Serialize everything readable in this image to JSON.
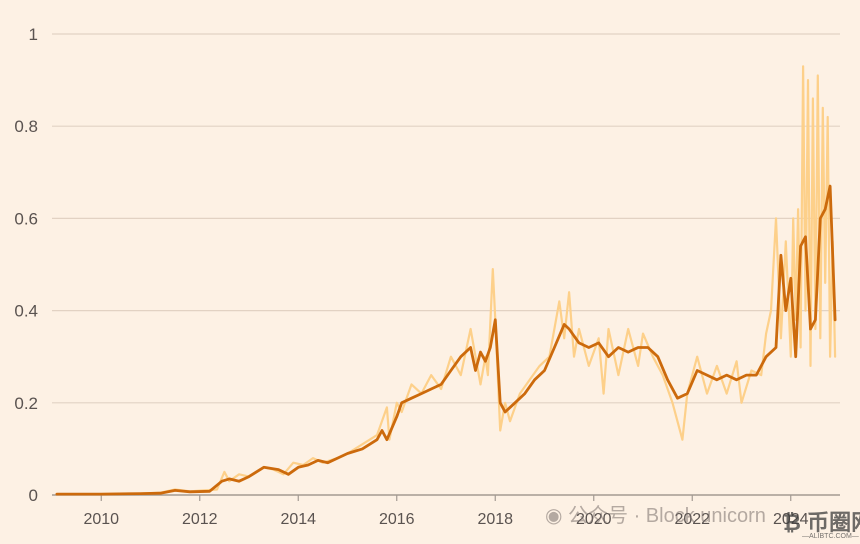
{
  "chart_data": {
    "type": "line",
    "title": "",
    "xlabel": "",
    "ylabel": "",
    "xlim": [
      2009.0,
      2025.0
    ],
    "ylim": [
      0,
      1
    ],
    "yticks": [
      {
        "value": 0,
        "label": "0"
      },
      {
        "value": 0.2,
        "label": "0.2"
      },
      {
        "value": 0.4,
        "label": "0.4"
      },
      {
        "value": 0.6,
        "label": "0.6"
      },
      {
        "value": 0.8,
        "label": "0.8"
      },
      {
        "value": 1,
        "label": "1"
      }
    ],
    "xticks": [
      {
        "value": 2010,
        "label": "2010"
      },
      {
        "value": 2012,
        "label": "2012"
      },
      {
        "value": 2014,
        "label": "2014"
      },
      {
        "value": 2016,
        "label": "2016"
      },
      {
        "value": 2018,
        "label": "2018"
      },
      {
        "value": 2020,
        "label": "2020"
      },
      {
        "value": 2022,
        "label": "2022"
      },
      {
        "value": 2024,
        "label": "2024"
      }
    ],
    "grid": true,
    "series": [
      {
        "color": "#fdd08a",
        "role": "daily",
        "x": [
          2009.1,
          2010.0,
          2010.8,
          2011.2,
          2011.5,
          2011.8,
          2012.1,
          2012.35,
          2012.5,
          2012.6,
          2012.8,
          2013.0,
          2013.3,
          2013.5,
          2013.7,
          2013.9,
          2014.1,
          2014.3,
          2014.5,
          2014.8,
          2015.0,
          2015.3,
          2015.6,
          2015.8,
          2015.85,
          2016.0,
          2016.1,
          2016.3,
          2016.5,
          2016.7,
          2016.9,
          2017.1,
          2017.3,
          2017.5,
          2017.7,
          2017.8,
          2017.85,
          2017.95,
          2018.0,
          2018.1,
          2018.2,
          2018.3,
          2018.5,
          2018.7,
          2018.9,
          2019.1,
          2019.3,
          2019.4,
          2019.5,
          2019.6,
          2019.7,
          2019.9,
          2020.1,
          2020.2,
          2020.3,
          2020.5,
          2020.7,
          2020.9,
          2021.0,
          2021.2,
          2021.4,
          2021.6,
          2021.8,
          2021.9,
          2022.1,
          2022.3,
          2022.5,
          2022.7,
          2022.9,
          2023.0,
          2023.2,
          2023.4,
          2023.5,
          2023.6,
          2023.7,
          2023.8,
          2023.9,
          2024.0,
          2024.05,
          2024.1,
          2024.15,
          2024.2,
          2024.25,
          2024.3,
          2024.35,
          2024.4,
          2024.45,
          2024.5,
          2024.55,
          2024.6,
          2024.65,
          2024.7,
          2024.75,
          2024.8,
          2024.85,
          2024.9
        ],
        "values": [
          0.002,
          0.002,
          0.003,
          0.005,
          0.012,
          0.008,
          0.01,
          0.012,
          0.05,
          0.03,
          0.045,
          0.04,
          0.06,
          0.055,
          0.045,
          0.07,
          0.065,
          0.08,
          0.07,
          0.08,
          0.09,
          0.11,
          0.13,
          0.19,
          0.12,
          0.2,
          0.18,
          0.24,
          0.22,
          0.26,
          0.23,
          0.3,
          0.26,
          0.36,
          0.24,
          0.3,
          0.26,
          0.49,
          0.38,
          0.14,
          0.2,
          0.16,
          0.22,
          0.25,
          0.28,
          0.3,
          0.42,
          0.34,
          0.44,
          0.3,
          0.36,
          0.28,
          0.34,
          0.22,
          0.36,
          0.26,
          0.36,
          0.28,
          0.35,
          0.3,
          0.26,
          0.2,
          0.12,
          0.22,
          0.3,
          0.22,
          0.28,
          0.22,
          0.29,
          0.2,
          0.27,
          0.26,
          0.35,
          0.4,
          0.6,
          0.34,
          0.55,
          0.3,
          0.6,
          0.38,
          0.62,
          0.32,
          0.93,
          0.4,
          0.9,
          0.28,
          0.86,
          0.36,
          0.91,
          0.34,
          0.84,
          0.46,
          0.82,
          0.3,
          0.55,
          0.3
        ]
      },
      {
        "color": "#cc6a0c",
        "role": "average",
        "x": [
          2009.1,
          2010.0,
          2010.8,
          2011.2,
          2011.5,
          2011.8,
          2012.2,
          2012.45,
          2012.6,
          2012.8,
          2013.0,
          2013.3,
          2013.6,
          2013.8,
          2014.0,
          2014.2,
          2014.4,
          2014.6,
          2014.8,
          2015.0,
          2015.3,
          2015.6,
          2015.7,
          2015.8,
          2016.0,
          2016.1,
          2016.3,
          2016.5,
          2016.7,
          2016.9,
          2017.1,
          2017.3,
          2017.5,
          2017.6,
          2017.7,
          2017.8,
          2017.9,
          2018.0,
          2018.1,
          2018.2,
          2018.4,
          2018.6,
          2018.8,
          2019.0,
          2019.2,
          2019.4,
          2019.5,
          2019.7,
          2019.9,
          2020.1,
          2020.3,
          2020.5,
          2020.7,
          2020.9,
          2021.1,
          2021.3,
          2021.5,
          2021.7,
          2021.9,
          2022.1,
          2022.3,
          2022.5,
          2022.7,
          2022.9,
          2023.1,
          2023.3,
          2023.5,
          2023.7,
          2023.8,
          2023.9,
          2024.0,
          2024.1,
          2024.2,
          2024.3,
          2024.4,
          2024.5,
          2024.6,
          2024.7,
          2024.8,
          2024.9
        ],
        "values": [
          0.002,
          0.002,
          0.003,
          0.004,
          0.01,
          0.007,
          0.008,
          0.03,
          0.035,
          0.03,
          0.04,
          0.06,
          0.055,
          0.045,
          0.06,
          0.065,
          0.075,
          0.07,
          0.08,
          0.09,
          0.1,
          0.12,
          0.14,
          0.12,
          0.17,
          0.2,
          0.21,
          0.22,
          0.23,
          0.24,
          0.27,
          0.3,
          0.32,
          0.27,
          0.31,
          0.29,
          0.32,
          0.38,
          0.2,
          0.18,
          0.2,
          0.22,
          0.25,
          0.27,
          0.32,
          0.37,
          0.36,
          0.33,
          0.32,
          0.33,
          0.3,
          0.32,
          0.31,
          0.32,
          0.32,
          0.3,
          0.25,
          0.21,
          0.22,
          0.27,
          0.26,
          0.25,
          0.26,
          0.25,
          0.26,
          0.26,
          0.3,
          0.32,
          0.52,
          0.4,
          0.47,
          0.3,
          0.54,
          0.56,
          0.36,
          0.38,
          0.6,
          0.62,
          0.67,
          0.38
        ]
      }
    ],
    "watermark": {
      "text": "公众号 · Block unicorn",
      "logo_text": "币圈网",
      "logo_sub": "—ALIBTC.COM—"
    }
  }
}
